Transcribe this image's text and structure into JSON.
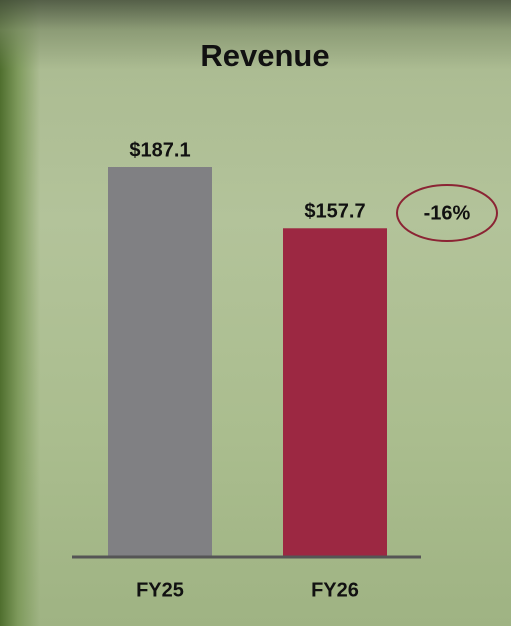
{
  "chart_data": {
    "type": "bar",
    "title": "Revenue",
    "categories": [
      "FY25",
      "FY26"
    ],
    "values": [
      187.1,
      157.7
    ],
    "value_labels": [
      "$187.1",
      "$157.7"
    ],
    "colors": [
      "#808083",
      "#9c2842"
    ],
    "annotation": "-16%"
  }
}
